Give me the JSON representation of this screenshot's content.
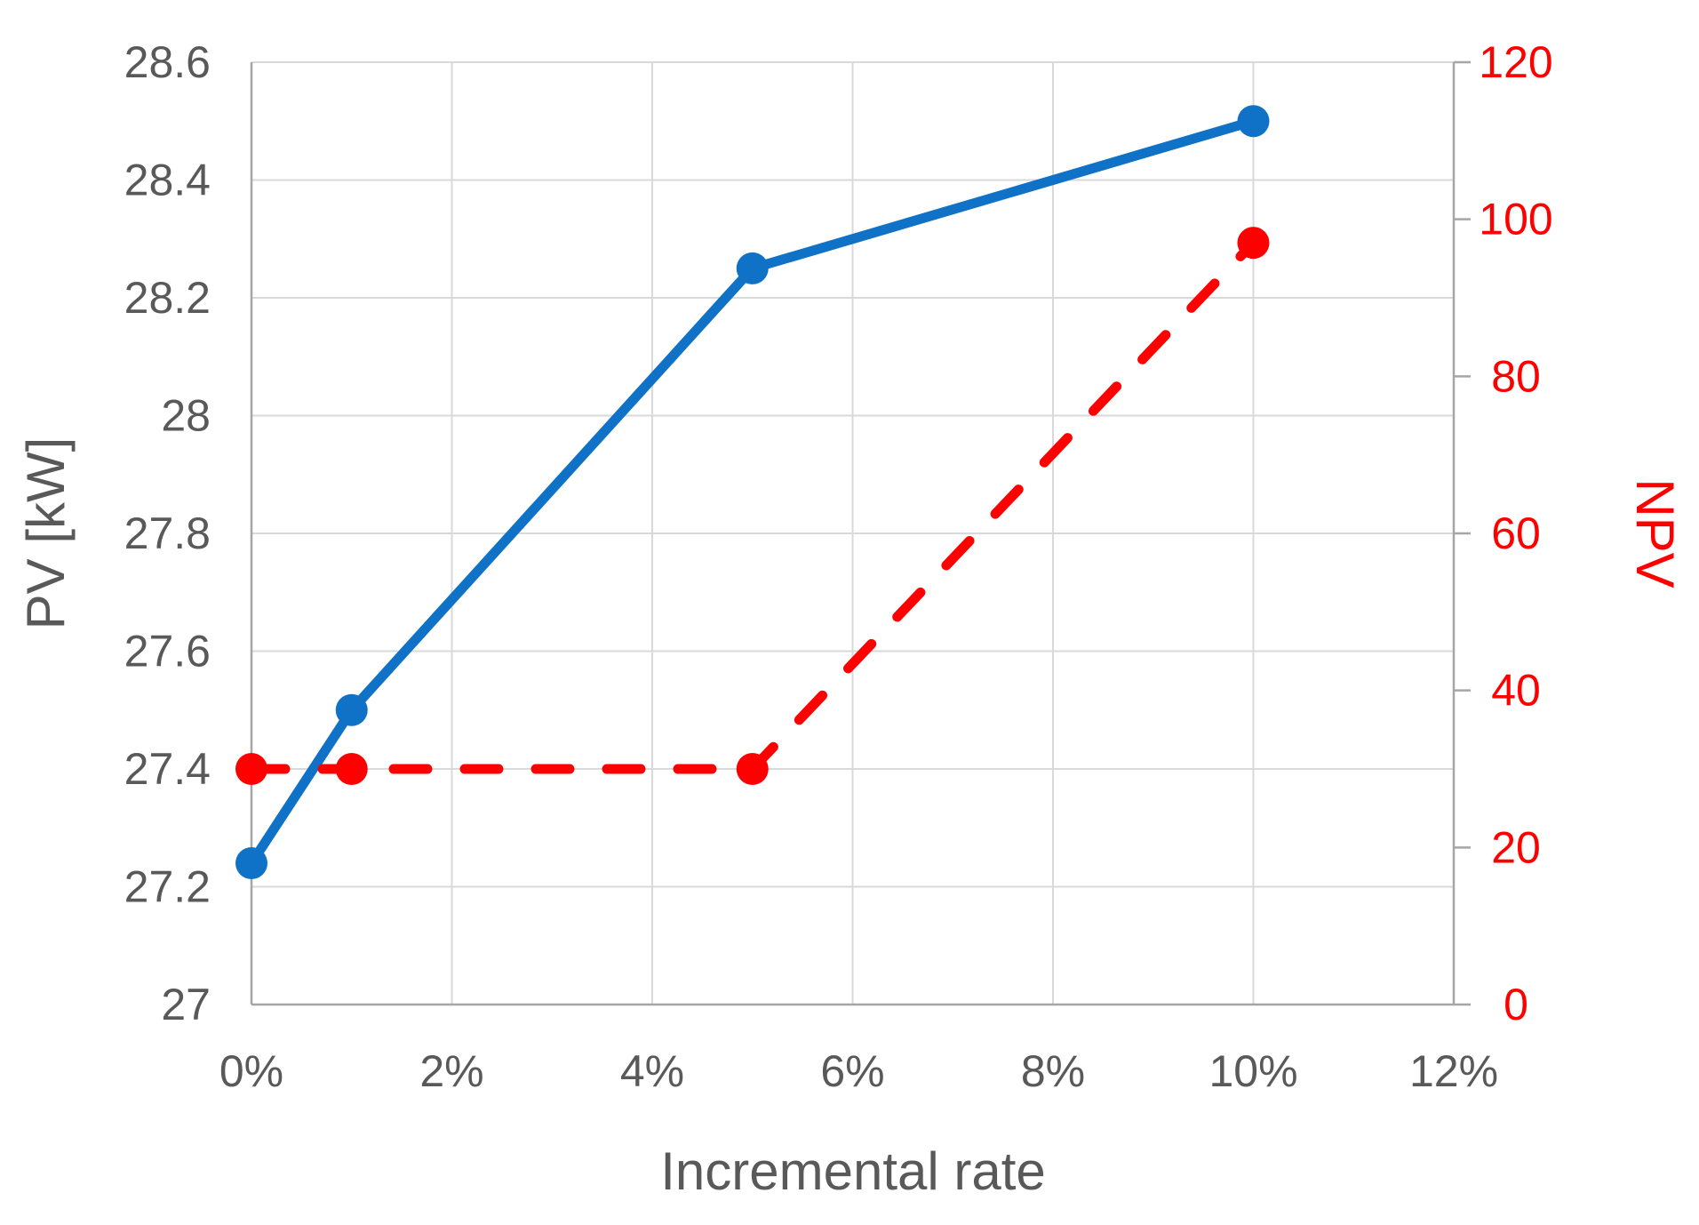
{
  "chart_data": {
    "type": "line",
    "title": "",
    "xlabel": "Incremental rate",
    "x_axis": {
      "min": 0,
      "max": 12,
      "ticks": [
        0,
        2,
        4,
        6,
        8,
        10,
        12
      ],
      "tick_labels": [
        "0%",
        "2%",
        "4%",
        "6%",
        "8%",
        "10%",
        "12%"
      ],
      "text_color": "#595959"
    },
    "left_axis": {
      "label": "PV [kW]",
      "min": 27,
      "max": 28.6,
      "ticks": [
        27,
        27.2,
        27.4,
        27.6,
        27.8,
        28,
        28.2,
        28.4,
        28.6
      ],
      "tick_labels": [
        "27",
        "27.2",
        "27.4",
        "27.6",
        "27.8",
        "28",
        "28.2",
        "28.4",
        "28.6"
      ],
      "text_color": "#595959"
    },
    "right_axis": {
      "label": "NPV",
      "min": 0,
      "max": 120,
      "ticks": [
        0,
        20,
        40,
        60,
        80,
        100,
        120
      ],
      "tick_labels": [
        "0",
        "20",
        "40",
        "60",
        "80",
        "100",
        "120"
      ],
      "text_color": "#ff0000"
    },
    "series": [
      {
        "name": "PV [kW]",
        "axis": "left",
        "color": "#0f72c6",
        "line_style": "solid",
        "marker": "circle",
        "x": [
          0,
          1,
          5,
          10
        ],
        "y": [
          27.24,
          27.5,
          28.25,
          28.5
        ]
      },
      {
        "name": "NPV",
        "axis": "right",
        "color": "#ff0000",
        "line_style": "dashed",
        "marker": "circle",
        "x": [
          0,
          1,
          5,
          10
        ],
        "y": [
          30,
          30,
          30,
          97
        ]
      }
    ],
    "grid": {
      "horizontal": true,
      "vertical": true,
      "color": "#d9d9d9"
    },
    "axis_line_color": "#a6a6a6",
    "legend": "none"
  }
}
